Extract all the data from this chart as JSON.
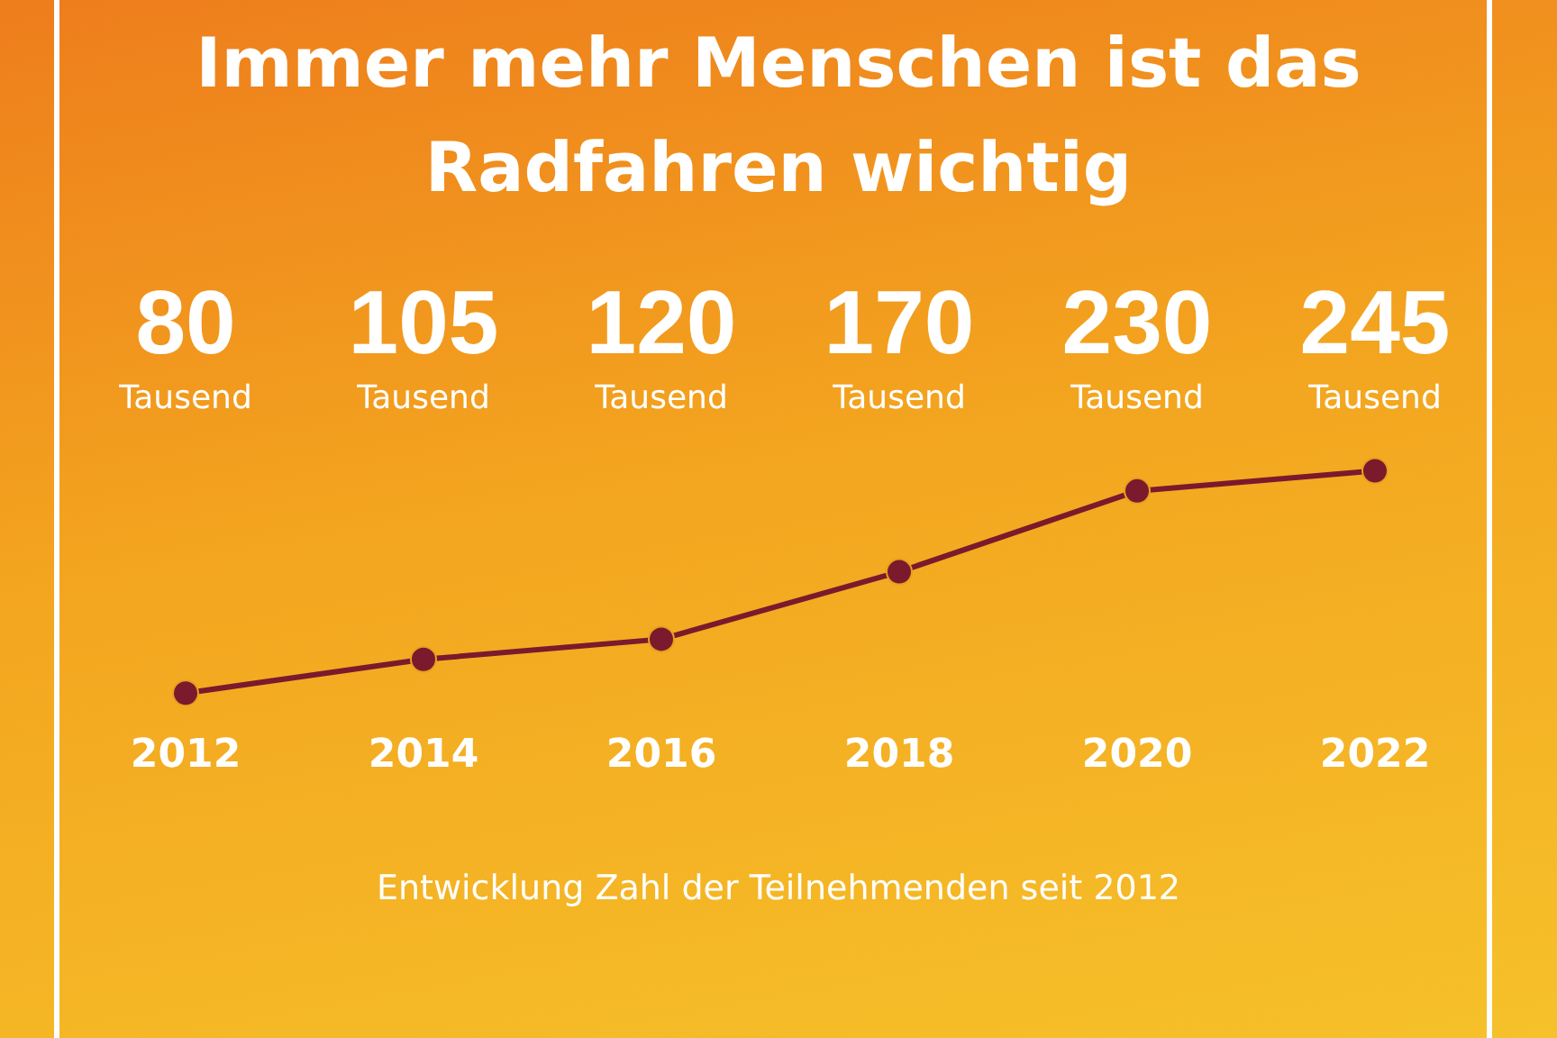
{
  "chart_data": {
    "type": "line",
    "title": "Immer mehr Menschen ist das Radfahren wichtig",
    "categories": [
      "2012",
      "2014",
      "2016",
      "2018",
      "2020",
      "2022"
    ],
    "values": [
      80,
      105,
      120,
      170,
      230,
      245
    ],
    "value_labels": [
      "80 Tausend",
      "105 Tausend",
      "120 Tausend",
      "170 Tausend",
      "230 Tausend",
      "245 Tausend"
    ],
    "color": "#7b1a2c",
    "marker": "circle",
    "line_style": "solid",
    "grid": false,
    "legend": false,
    "tick_labels": "x",
    "annotations": [
      "Entwicklung Zahl der Teilnehmenden seit 2012"
    ]
  }
}
